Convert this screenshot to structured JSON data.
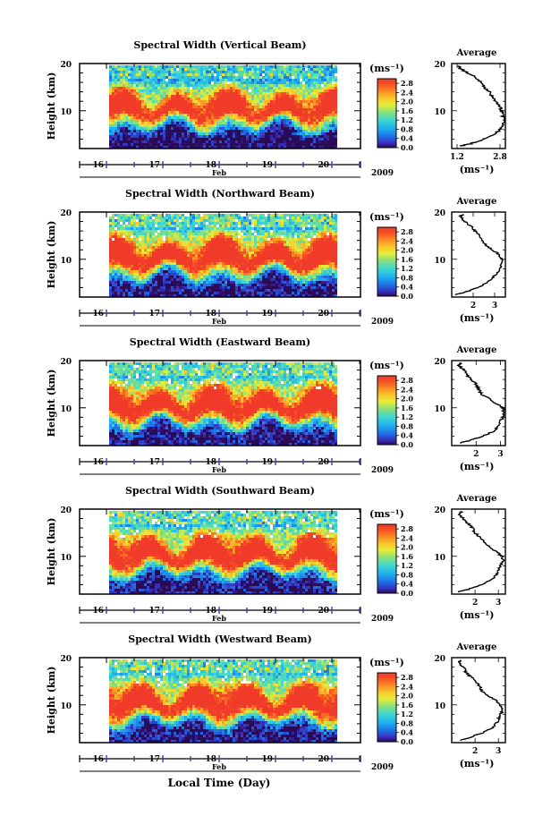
{
  "figure": {
    "global_xlabel": "Local Time (Day)"
  },
  "chart_data": [
    {
      "type": "heatmap",
      "title": "Spectral Width (Vertical Beam)",
      "ylabel": "Height (km)",
      "ylim": [
        2,
        20
      ],
      "yticks": [
        "10",
        "20"
      ],
      "xticks": [
        "16",
        "17",
        "18",
        "19",
        "20"
      ],
      "xlabel": "Feb",
      "year": "2009",
      "colorbar": {
        "unit": "(ms⁻¹)",
        "ticks": [
          "0.0",
          "0.4",
          "0.8",
          "1.2",
          "1.6",
          "2.0",
          "2.4",
          "2.8"
        ],
        "range": [
          0,
          3.0
        ]
      },
      "profile": {
        "title": "Average",
        "xlabel": "(ms⁻¹)",
        "xticks": [
          "1.2",
          "2.8"
        ],
        "xlim": [
          1.0,
          3.0
        ],
        "heights": [
          2.5,
          3,
          4,
          5,
          6,
          7,
          8,
          9,
          10,
          11,
          12,
          13,
          14,
          15,
          16,
          17,
          18,
          19,
          19.5
        ],
        "values": [
          1.3,
          1.7,
          2.2,
          2.6,
          2.8,
          2.9,
          2.95,
          2.9,
          2.85,
          2.8,
          2.6,
          2.5,
          2.4,
          2.2,
          2.1,
          1.9,
          1.6,
          1.3,
          1.25
        ]
      }
    },
    {
      "type": "heatmap",
      "title": "Spectral Width (Northward Beam)",
      "ylabel": "Height (km)",
      "ylim": [
        2,
        20
      ],
      "yticks": [
        "10",
        "20"
      ],
      "xticks": [
        "16",
        "17",
        "18",
        "19",
        "20"
      ],
      "xlabel": "Feb",
      "year": "2009",
      "colorbar": {
        "unit": "(ms⁻¹)",
        "ticks": [
          "0.0",
          "0.4",
          "0.8",
          "1.2",
          "1.6",
          "2.0",
          "2.4",
          "2.8"
        ],
        "range": [
          0,
          3.0
        ]
      },
      "profile": {
        "title": "Average",
        "xlabel": "(ms⁻¹)",
        "xticks": [
          "2",
          "3"
        ],
        "xlim": [
          1.0,
          3.5
        ],
        "heights": [
          2.5,
          3,
          4,
          5,
          6,
          7,
          8,
          9,
          10,
          11,
          12,
          13,
          14,
          15,
          16,
          17,
          18,
          19,
          19.5
        ],
        "values": [
          1.2,
          1.6,
          2.2,
          2.6,
          2.9,
          3.1,
          3.25,
          3.3,
          3.35,
          3.2,
          2.9,
          2.6,
          2.4,
          2.3,
          2.1,
          1.9,
          1.6,
          1.4,
          1.5
        ]
      }
    },
    {
      "type": "heatmap",
      "title": "Spectral Width (Eastward Beam)",
      "ylabel": "Height (km)",
      "ylim": [
        2,
        20
      ],
      "yticks": [
        "10",
        "20"
      ],
      "xticks": [
        "16",
        "17",
        "18",
        "19",
        "20"
      ],
      "xlabel": "Feb",
      "year": "2009",
      "colorbar": {
        "unit": "(ms⁻¹)",
        "ticks": [
          "0.0",
          "0.4",
          "0.8",
          "1.2",
          "1.6",
          "2.0",
          "2.4",
          "2.8"
        ],
        "range": [
          0,
          3.0
        ]
      },
      "profile": {
        "title": "Average",
        "xlabel": "(ms⁻¹)",
        "xticks": [
          "2",
          "3"
        ],
        "xlim": [
          1.0,
          3.2
        ],
        "heights": [
          2.5,
          3,
          4,
          5,
          6,
          7,
          8,
          9,
          10,
          11,
          12,
          13,
          14,
          15,
          16,
          17,
          18,
          19,
          19.5
        ],
        "values": [
          1.3,
          1.7,
          2.3,
          2.7,
          2.9,
          3.0,
          3.1,
          3.15,
          3.1,
          2.8,
          2.5,
          2.2,
          2.1,
          2.0,
          1.8,
          1.6,
          1.5,
          1.3,
          1.4
        ]
      }
    },
    {
      "type": "heatmap",
      "title": "Spectral Width (Southward Beam)",
      "ylabel": "Height (km)",
      "ylim": [
        2,
        20
      ],
      "yticks": [
        "10",
        "20"
      ],
      "xticks": [
        "16",
        "17",
        "18",
        "19",
        "20"
      ],
      "xlabel": "Feb",
      "year": "2009",
      "colorbar": {
        "unit": "(ms⁻¹)",
        "ticks": [
          "0.0",
          "0.4",
          "0.8",
          "1.2",
          "1.6",
          "2.0",
          "2.4",
          "2.8"
        ],
        "range": [
          0,
          3.0
        ]
      },
      "profile": {
        "title": "Average",
        "xlabel": "(ms⁻¹)",
        "xticks": [
          "2",
          "3"
        ],
        "xlim": [
          1.0,
          3.3
        ],
        "heights": [
          2.5,
          3,
          4,
          5,
          6,
          7,
          8,
          9,
          10,
          11,
          12,
          13,
          14,
          15,
          16,
          17,
          18,
          19,
          19.5
        ],
        "values": [
          1.3,
          1.7,
          2.3,
          2.7,
          2.9,
          3.0,
          3.1,
          3.2,
          3.15,
          2.9,
          2.6,
          2.4,
          2.2,
          2.0,
          1.9,
          1.7,
          1.5,
          1.3,
          1.4
        ]
      }
    },
    {
      "type": "heatmap",
      "title": "Spectral Width (Westward Beam)",
      "ylabel": "Height (km)",
      "ylim": [
        2,
        20
      ],
      "yticks": [
        "10",
        "20"
      ],
      "xticks": [
        "16",
        "17",
        "18",
        "19",
        "20"
      ],
      "xlabel": "Feb",
      "year": "2009",
      "colorbar": {
        "unit": "(ms⁻¹)",
        "ticks": [
          "0.0",
          "0.4",
          "0.8",
          "1.2",
          "1.6",
          "2.0",
          "2.4",
          "2.8"
        ],
        "range": [
          0,
          3.0
        ]
      },
      "profile": {
        "title": "Average",
        "xlabel": "(ms⁻¹)",
        "xticks": [
          "2",
          "3"
        ],
        "xlim": [
          1.0,
          3.3
        ],
        "heights": [
          2.5,
          3,
          4,
          5,
          6,
          7,
          8,
          9,
          10,
          11,
          12,
          13,
          14,
          15,
          16,
          17,
          18,
          19,
          19.5
        ],
        "values": [
          1.4,
          1.7,
          2.3,
          2.7,
          2.9,
          3.0,
          3.1,
          3.2,
          3.1,
          2.9,
          2.5,
          2.3,
          2.2,
          2.0,
          1.8,
          1.6,
          1.5,
          1.3,
          1.4
        ]
      }
    }
  ]
}
